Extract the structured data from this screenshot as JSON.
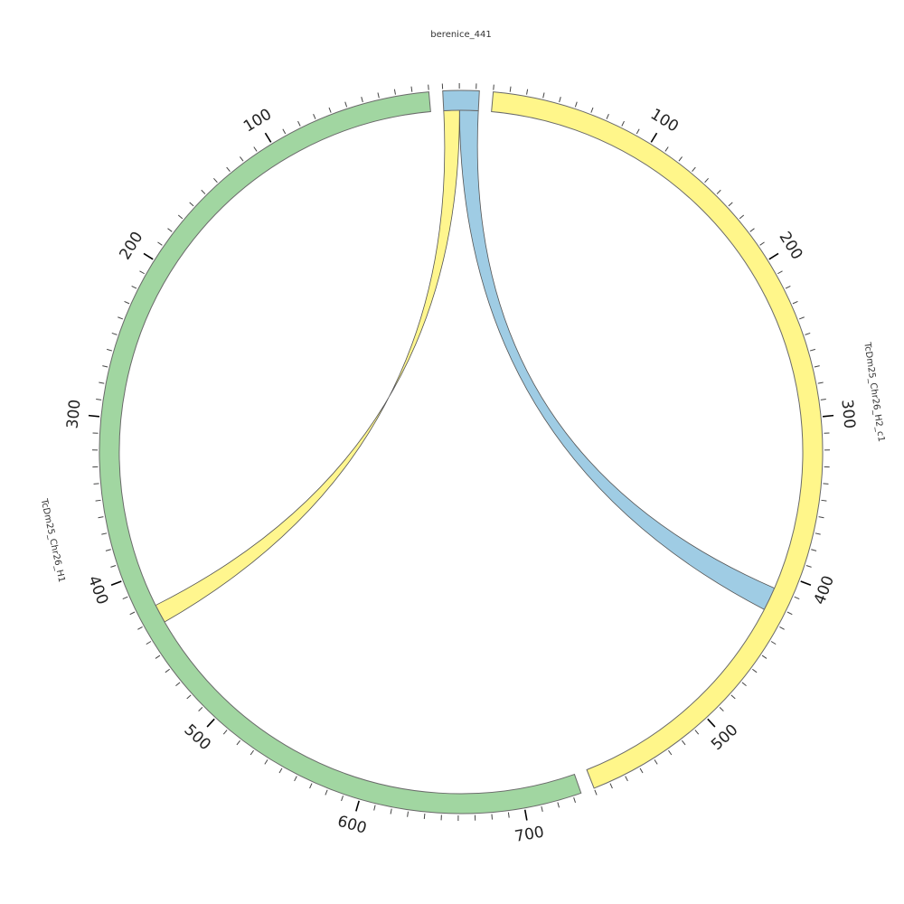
{
  "chart_data": {
    "type": "chord",
    "segments": [
      {
        "name": "berenice_441",
        "length": 22,
        "color": "#9ccae3",
        "tick_labels": []
      },
      {
        "name": "TcDm25_Chr26_H2_c1",
        "length": 580,
        "color": "#fff68a",
        "tick_labels": [
          "100",
          "200",
          "300",
          "400",
          "500"
        ]
      },
      {
        "name": "TcDm25_Chr26_H1",
        "length": 735,
        "color": "#a1d6a1",
        "tick_labels": [
          "100",
          "200",
          "300",
          "400",
          "500",
          "600",
          "700"
        ]
      }
    ],
    "links": [
      {
        "color": "#9ccae3",
        "from": {
          "segment": "berenice_441",
          "start": 10,
          "end": 22
        },
        "to": {
          "segment": "TcDm25_Chr26_H2_c1",
          "start": 410,
          "end": 425
        }
      },
      {
        "color": "#fff68a",
        "from": {
          "segment": "berenice_441",
          "start": 0,
          "end": 10
        },
        "to": {
          "segment": "TcDm25_Chr26_H1",
          "start": 422,
          "end": 434
        }
      },
      {
        "color": "#fff68a",
        "from": {
          "segment": "TcDm25_Chr26_H2_c1",
          "start": 0,
          "end": 0
        },
        "to": {
          "segment": "TcDm25_Chr26_H1",
          "start": 0,
          "end": 0
        }
      }
    ],
    "tick_minor_step": 10,
    "tick_major_step": 100
  }
}
